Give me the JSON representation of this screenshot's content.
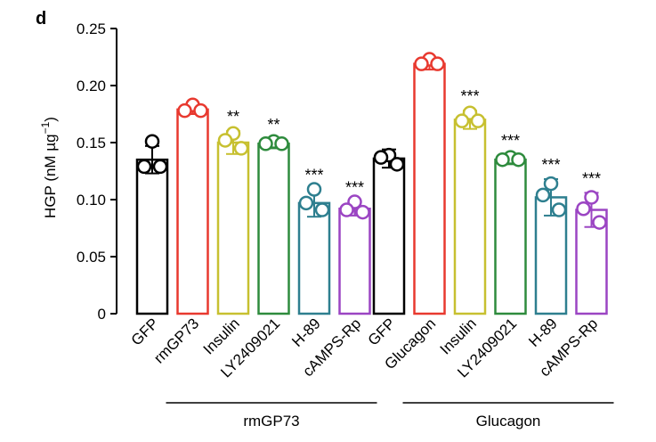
{
  "panel_label": "d",
  "chart_data": {
    "type": "bar",
    "ylabel": "HGP (nM µg",
    "ylabel_sup": "−1",
    "ylabel_end": ")",
    "ylim": [
      0,
      0.25
    ],
    "yticks": [
      "0",
      "0.05",
      "0.10",
      "0.15",
      "0.20",
      "0.25"
    ],
    "ytick_values": [
      0,
      0.05,
      0.1,
      0.15,
      0.2,
      0.25
    ],
    "groups": [
      {
        "label": "rmGP73",
        "bars": [
          {
            "name": "GFP",
            "value": 0.135,
            "err": 0.012,
            "points": [
              0.151,
              0.129,
              0.129
            ],
            "sig": "",
            "color": "#000000"
          },
          {
            "name": "rmGP73",
            "value": 0.179,
            "err": 0.004,
            "points": [
              0.183,
              0.178,
              0.178
            ],
            "sig": "",
            "color": "#e8392f"
          },
          {
            "name": "Insulin",
            "value": 0.15,
            "err": 0.01,
            "points": [
              0.158,
              0.152,
              0.145
            ],
            "sig": "**",
            "color": "#c7c030"
          },
          {
            "name": "LY2409021",
            "value": 0.149,
            "err": 0.004,
            "points": [
              0.151,
              0.149,
              0.149
            ],
            "sig": "**",
            "color": "#2e8b3d"
          },
          {
            "name": "H-89",
            "value": 0.097,
            "err": 0.012,
            "points": [
              0.109,
              0.097,
              0.091
            ],
            "sig": "***",
            "color": "#2e7f8f"
          },
          {
            "name": "cAMPS-Rp",
            "value": 0.092,
            "err": 0.006,
            "points": [
              0.098,
              0.091,
              0.089
            ],
            "sig": "***",
            "color": "#9b45c3"
          }
        ]
      },
      {
        "label": "Glucagon",
        "bars": [
          {
            "name": "GFP",
            "value": 0.136,
            "err": 0.008,
            "points": [
              0.139,
              0.137,
              0.131
            ],
            "sig": "",
            "color": "#000000"
          },
          {
            "name": "Glucagon",
            "value": 0.219,
            "err": 0.005,
            "points": [
              0.223,
              0.219,
              0.219
            ],
            "sig": "",
            "color": "#e8392f"
          },
          {
            "name": "Insulin",
            "value": 0.17,
            "err": 0.008,
            "points": [
              0.176,
              0.169,
              0.169
            ],
            "sig": "***",
            "color": "#c7c030"
          },
          {
            "name": "LY2409021",
            "value": 0.135,
            "err": 0.004,
            "points": [
              0.137,
              0.135,
              0.135
            ],
            "sig": "***",
            "color": "#2e8b3d"
          },
          {
            "name": "H-89",
            "value": 0.102,
            "err": 0.016,
            "points": [
              0.114,
              0.104,
              0.091
            ],
            "sig": "***",
            "color": "#2e7f8f"
          },
          {
            "name": "cAMPS-Rp",
            "value": 0.091,
            "err": 0.015,
            "points": [
              0.102,
              0.092,
              0.08
            ],
            "sig": "***",
            "color": "#9b45c3"
          }
        ]
      }
    ]
  }
}
